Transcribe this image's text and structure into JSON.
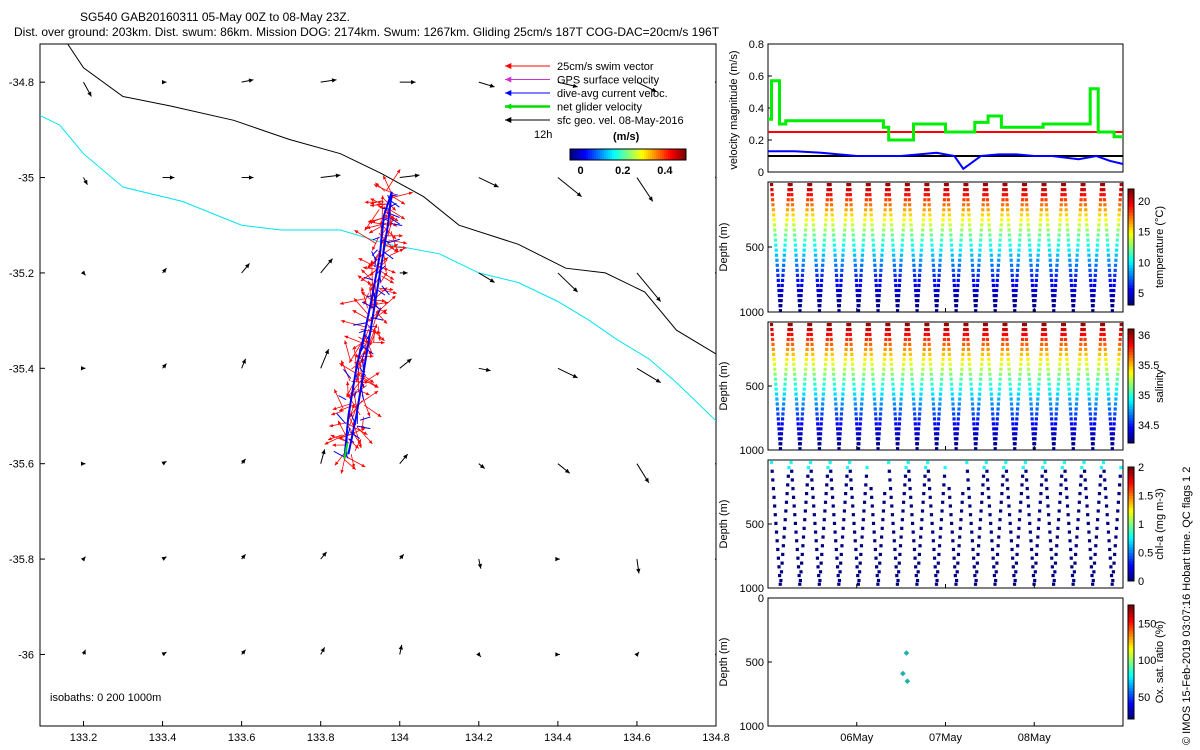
{
  "header": {
    "line1": "SG540 GAB20160311 05-May 00Z to 08-May 23Z.",
    "line2": "Dist. over ground: 203km. Dist. swum: 86km. Mission DOG: 2174km. Swum: 1267km. Gliding 25cm/s 187T COG-DAC=20cm/s 196T"
  },
  "footer_vertical": "© IMOS 15-Feb-2019 03:07:16 Hobart time. QC flags 1  2",
  "chart_data": [
    {
      "id": "map",
      "type": "line",
      "xticks": [
        "133.2",
        "133.4",
        "133.6",
        "133.8",
        "134",
        "134.2",
        "134.4",
        "134.6",
        "134.8"
      ],
      "yticks": [
        "-34.8",
        "-35",
        "-35.2",
        "-35.4",
        "-35.6",
        "-35.8",
        "-36"
      ],
      "xlim": [
        133.09,
        134.8
      ],
      "ylim": [
        -36.15,
        -34.72
      ],
      "legend": [
        "25cm/s swim vector",
        "GPS surface velocity",
        "dive-avg current veloc.",
        "net glider velocity",
        "sfc geo. vel. 08-May-2016"
      ],
      "legend_colors": [
        "#ff0000",
        "#cc33cc",
        "#0000ff",
        "#00dd00",
        "#000000"
      ],
      "legend_extra": "12h",
      "colorbar_title": "(m/s)",
      "colorbar_ticks": [
        "0",
        "0.2",
        "0.4"
      ],
      "colorbar_range": [
        -0.05,
        0.5
      ],
      "note": "isobaths: 0   200  1000m",
      "isobath_1000": [
        [
          133.09,
          -34.87
        ],
        [
          133.14,
          -34.89
        ],
        [
          133.2,
          -34.95
        ],
        [
          133.3,
          -35.02
        ],
        [
          133.45,
          -35.05
        ],
        [
          133.6,
          -35.1
        ],
        [
          133.7,
          -35.11
        ],
        [
          133.85,
          -35.11
        ],
        [
          133.97,
          -35.14
        ],
        [
          134.1,
          -35.16
        ],
        [
          134.2,
          -35.2
        ],
        [
          134.3,
          -35.22
        ],
        [
          134.4,
          -35.26
        ],
        [
          134.48,
          -35.3
        ],
        [
          134.55,
          -35.34
        ],
        [
          134.63,
          -35.38
        ],
        [
          134.7,
          -35.43
        ],
        [
          134.8,
          -35.51
        ]
      ],
      "isobath_200": [
        [
          133.16,
          -34.72
        ],
        [
          133.2,
          -34.77
        ],
        [
          133.3,
          -34.83
        ],
        [
          133.42,
          -34.85
        ],
        [
          133.58,
          -34.88
        ],
        [
          133.72,
          -34.92
        ],
        [
          133.85,
          -34.95
        ],
        [
          133.95,
          -34.99
        ],
        [
          134.06,
          -35.04
        ],
        [
          134.15,
          -35.1
        ],
        [
          134.3,
          -35.14
        ],
        [
          134.42,
          -35.19
        ],
        [
          134.52,
          -35.2
        ],
        [
          134.62,
          -35.24
        ],
        [
          134.7,
          -35.32
        ],
        [
          134.8,
          -35.37
        ]
      ],
      "track": [
        [
          133.86,
          -35.59
        ],
        [
          133.87,
          -35.5
        ],
        [
          133.89,
          -35.4
        ],
        [
          133.91,
          -35.33
        ],
        [
          133.93,
          -35.25
        ],
        [
          133.95,
          -35.16
        ],
        [
          133.96,
          -35.08
        ],
        [
          133.98,
          -35.03
        ],
        [
          133.97,
          -35.1
        ],
        [
          133.95,
          -35.2
        ],
        [
          133.93,
          -35.3
        ],
        [
          133.91,
          -35.4
        ],
        [
          133.89,
          -35.5
        ],
        [
          133.87,
          -35.58
        ]
      ],
      "vector_grid_x": [
        133.2,
        133.4,
        133.6,
        133.8,
        134.0,
        134.2,
        134.4,
        134.6,
        134.8
      ],
      "vector_grid_y": [
        -34.8,
        -35.0,
        -35.2,
        -35.4,
        -35.6,
        -35.8,
        -36.0
      ],
      "vectors": [
        [
          [
            0.02,
            -0.03
          ],
          [
            0.01,
            0
          ],
          [
            0.03,
            0.005
          ],
          [
            0.04,
            0.005
          ],
          [
            0.04,
            0
          ],
          [
            0.04,
            -0.01
          ],
          [
            0.05,
            -0.01
          ],
          [
            0.05,
            -0.02
          ],
          [
            0,
            0
          ]
        ],
        [
          [
            0.01,
            -0.015
          ],
          [
            0.03,
            0
          ],
          [
            0.03,
            0
          ],
          [
            0.05,
            0.005
          ],
          [
            0.05,
            0.005
          ],
          [
            0.05,
            -0.02
          ],
          [
            0.06,
            -0.04
          ],
          [
            0.04,
            -0.05
          ],
          [
            0,
            0
          ]
        ],
        [
          [
            0.005,
            -0.005
          ],
          [
            0.01,
            0.01
          ],
          [
            0.02,
            0.02
          ],
          [
            0.03,
            0.03
          ],
          [
            0.02,
            0
          ],
          [
            0.04,
            -0.02
          ],
          [
            0.05,
            -0.04
          ],
          [
            0.06,
            -0.06
          ],
          [
            0,
            0
          ]
        ],
        [
          [
            0.005,
            0
          ],
          [
            0.01,
            0.01
          ],
          [
            0.01,
            0.02
          ],
          [
            0.02,
            0.04
          ],
          [
            0.03,
            0.02
          ],
          [
            0.03,
            -0.005
          ],
          [
            0.05,
            -0.02
          ],
          [
            0.06,
            -0.03
          ],
          [
            0.05,
            -0.05
          ]
        ],
        [
          [
            0.005,
            0
          ],
          [
            0.01,
            0.005
          ],
          [
            0.01,
            0.01
          ],
          [
            0.01,
            0.03
          ],
          [
            0.02,
            0.02
          ],
          [
            0.015,
            -0.01
          ],
          [
            0.03,
            -0.02
          ],
          [
            0.03,
            -0.04
          ],
          [
            0,
            0
          ]
        ],
        [
          [
            0.005,
            0.005
          ],
          [
            0.01,
            0.005
          ],
          [
            0.01,
            0.01
          ],
          [
            0.015,
            0.015
          ],
          [
            0.01,
            0.01
          ],
          [
            0.005,
            -0.02
          ],
          [
            0.005,
            0
          ],
          [
            0.005,
            -0.03
          ],
          [
            0,
            0
          ]
        ],
        [
          [
            0.005,
            0.01
          ],
          [
            0.01,
            0.005
          ],
          [
            0.01,
            0.01
          ],
          [
            0.01,
            0.015
          ],
          [
            0.005,
            0.02
          ],
          [
            0.005,
            -0.005
          ],
          [
            0.005,
            0
          ],
          [
            0.005,
            0.005
          ],
          [
            0,
            0
          ]
        ]
      ]
    },
    {
      "id": "velocity",
      "type": "line",
      "ylabel": "velocity magnitude (m/s)",
      "yticks": [
        "0",
        "0.2",
        "0.4",
        "0.6",
        "0.8"
      ],
      "ylim": [
        0,
        0.8
      ],
      "xlim": [
        0,
        4
      ],
      "series": [
        {
          "color": "#ff0000",
          "x": [
            0,
            4
          ],
          "values": [
            0.25,
            0.25
          ]
        },
        {
          "color": "#000000",
          "x": [
            0,
            4
          ],
          "values": [
            0.1,
            0.1
          ]
        },
        {
          "color": "#00ee00",
          "x": [
            0,
            0.04,
            0.04,
            0.13,
            0.13,
            0.2,
            0.2,
            1.3,
            1.3,
            1.36,
            1.36,
            1.64,
            1.64,
            2.0,
            2.0,
            2.33,
            2.33,
            2.48,
            2.48,
            2.63,
            2.63,
            3.1,
            3.1,
            3.63,
            3.63,
            3.72,
            3.72,
            3.9,
            3.9,
            4.0
          ],
          "values": [
            0.33,
            0.33,
            0.57,
            0.57,
            0.3,
            0.3,
            0.32,
            0.32,
            0.28,
            0.28,
            0.2,
            0.2,
            0.3,
            0.3,
            0.25,
            0.25,
            0.31,
            0.31,
            0.35,
            0.35,
            0.28,
            0.28,
            0.3,
            0.3,
            0.52,
            0.52,
            0.25,
            0.25,
            0.22,
            0.22
          ]
        },
        {
          "color": "#0000ff",
          "x": [
            0,
            0.3,
            0.6,
            1.0,
            1.5,
            1.9,
            2.1,
            2.2,
            2.4,
            2.6,
            2.8,
            3.0,
            3.2,
            3.5,
            3.7,
            3.85,
            4.0
          ],
          "values": [
            0.13,
            0.13,
            0.12,
            0.1,
            0.1,
            0.12,
            0.1,
            0.02,
            0.1,
            0.11,
            0.11,
            0.1,
            0.1,
            0.08,
            0.1,
            0.07,
            0.05
          ]
        }
      ]
    },
    {
      "id": "temperature",
      "type": "scatter",
      "ylabel": "Depth (m)",
      "yticks": [
        "500",
        "1000"
      ],
      "ylim": [
        1000,
        0
      ],
      "cbar_label": "temperature (°C)",
      "cbar_ticks": [
        "5",
        "10",
        "15",
        "20"
      ],
      "cbar_range": [
        3,
        22
      ]
    },
    {
      "id": "salinity",
      "type": "scatter",
      "ylabel": "Depth (m)",
      "yticks": [
        "500",
        "1000"
      ],
      "ylim": [
        1000,
        0
      ],
      "cbar_label": "salinity",
      "cbar_ticks": [
        "34.5",
        "35",
        "35.5",
        "36"
      ],
      "cbar_range": [
        34.2,
        36.1
      ]
    },
    {
      "id": "chla",
      "type": "scatter",
      "ylabel": "Depth (m)",
      "yticks": [
        "500",
        "1000"
      ],
      "ylim": [
        1000,
        0
      ],
      "cbar_label": "chl-a (mg m-3)",
      "cbar_ticks": [
        "0",
        "0.5",
        "1",
        "1.5",
        "2"
      ],
      "cbar_range": [
        0,
        2
      ]
    },
    {
      "id": "oxygen",
      "type": "scatter",
      "ylabel": "Depth (m)",
      "yticks": [
        "0",
        "500",
        "1000"
      ],
      "ylim": [
        1000,
        0
      ],
      "cbar_label": "Ox. sat. ratio (%)",
      "cbar_ticks": [
        "50",
        "100",
        "150"
      ],
      "cbar_range": [
        20,
        175
      ],
      "xticks": [
        "06May",
        "07May",
        "08May"
      ],
      "xtick_pos": [
        1,
        2,
        3
      ],
      "points": [
        [
          1.56,
          430
        ],
        [
          1.52,
          590
        ],
        [
          1.57,
          650
        ]
      ]
    }
  ]
}
